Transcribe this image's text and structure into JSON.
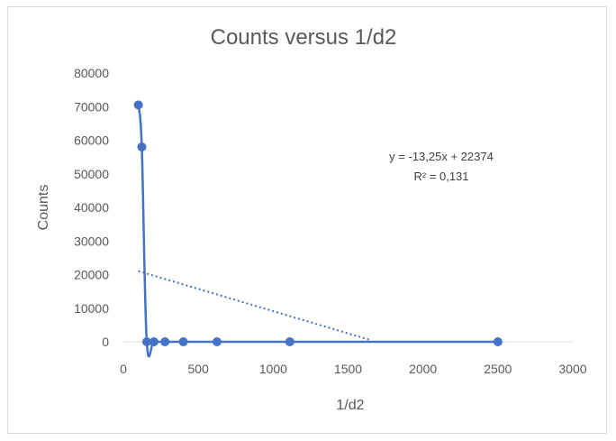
{
  "chart_data": {
    "type": "scatter",
    "title": "Counts versus 1/d2",
    "xlabel": "1/d2",
    "ylabel": "Counts",
    "xlim": [
      0,
      3000
    ],
    "ylim": [
      0,
      80000
    ],
    "x_ticks": [
      0,
      500,
      1000,
      1500,
      2000,
      2500,
      3000
    ],
    "y_ticks": [
      0,
      10000,
      20000,
      30000,
      40000,
      50000,
      60000,
      70000,
      80000
    ],
    "grid": false,
    "legend": "none",
    "series": [
      {
        "points": [
          {
            "x": 100,
            "y": 70500
          },
          {
            "x": 123,
            "y": 58000
          },
          {
            "x": 156,
            "y": 0
          },
          {
            "x": 204,
            "y": 0
          },
          {
            "x": 278,
            "y": 0
          },
          {
            "x": 400,
            "y": 0
          },
          {
            "x": 625,
            "y": 0
          },
          {
            "x": 1111,
            "y": 0
          },
          {
            "x": 2500,
            "y": 0
          }
        ],
        "color": "#4472c4",
        "connector": "smooth-line"
      }
    ],
    "trendline": {
      "kind": "linear",
      "slope": -13.25,
      "intercept": 22374,
      "x_range": [
        100,
        1640
      ],
      "style": "dotted",
      "color": "#4472c4",
      "equation_label": "y = -13,25x + 22374",
      "r2_label": "R² = 0,131"
    },
    "colors": {
      "axis": "#d9d9d9",
      "text": "#595959"
    }
  }
}
